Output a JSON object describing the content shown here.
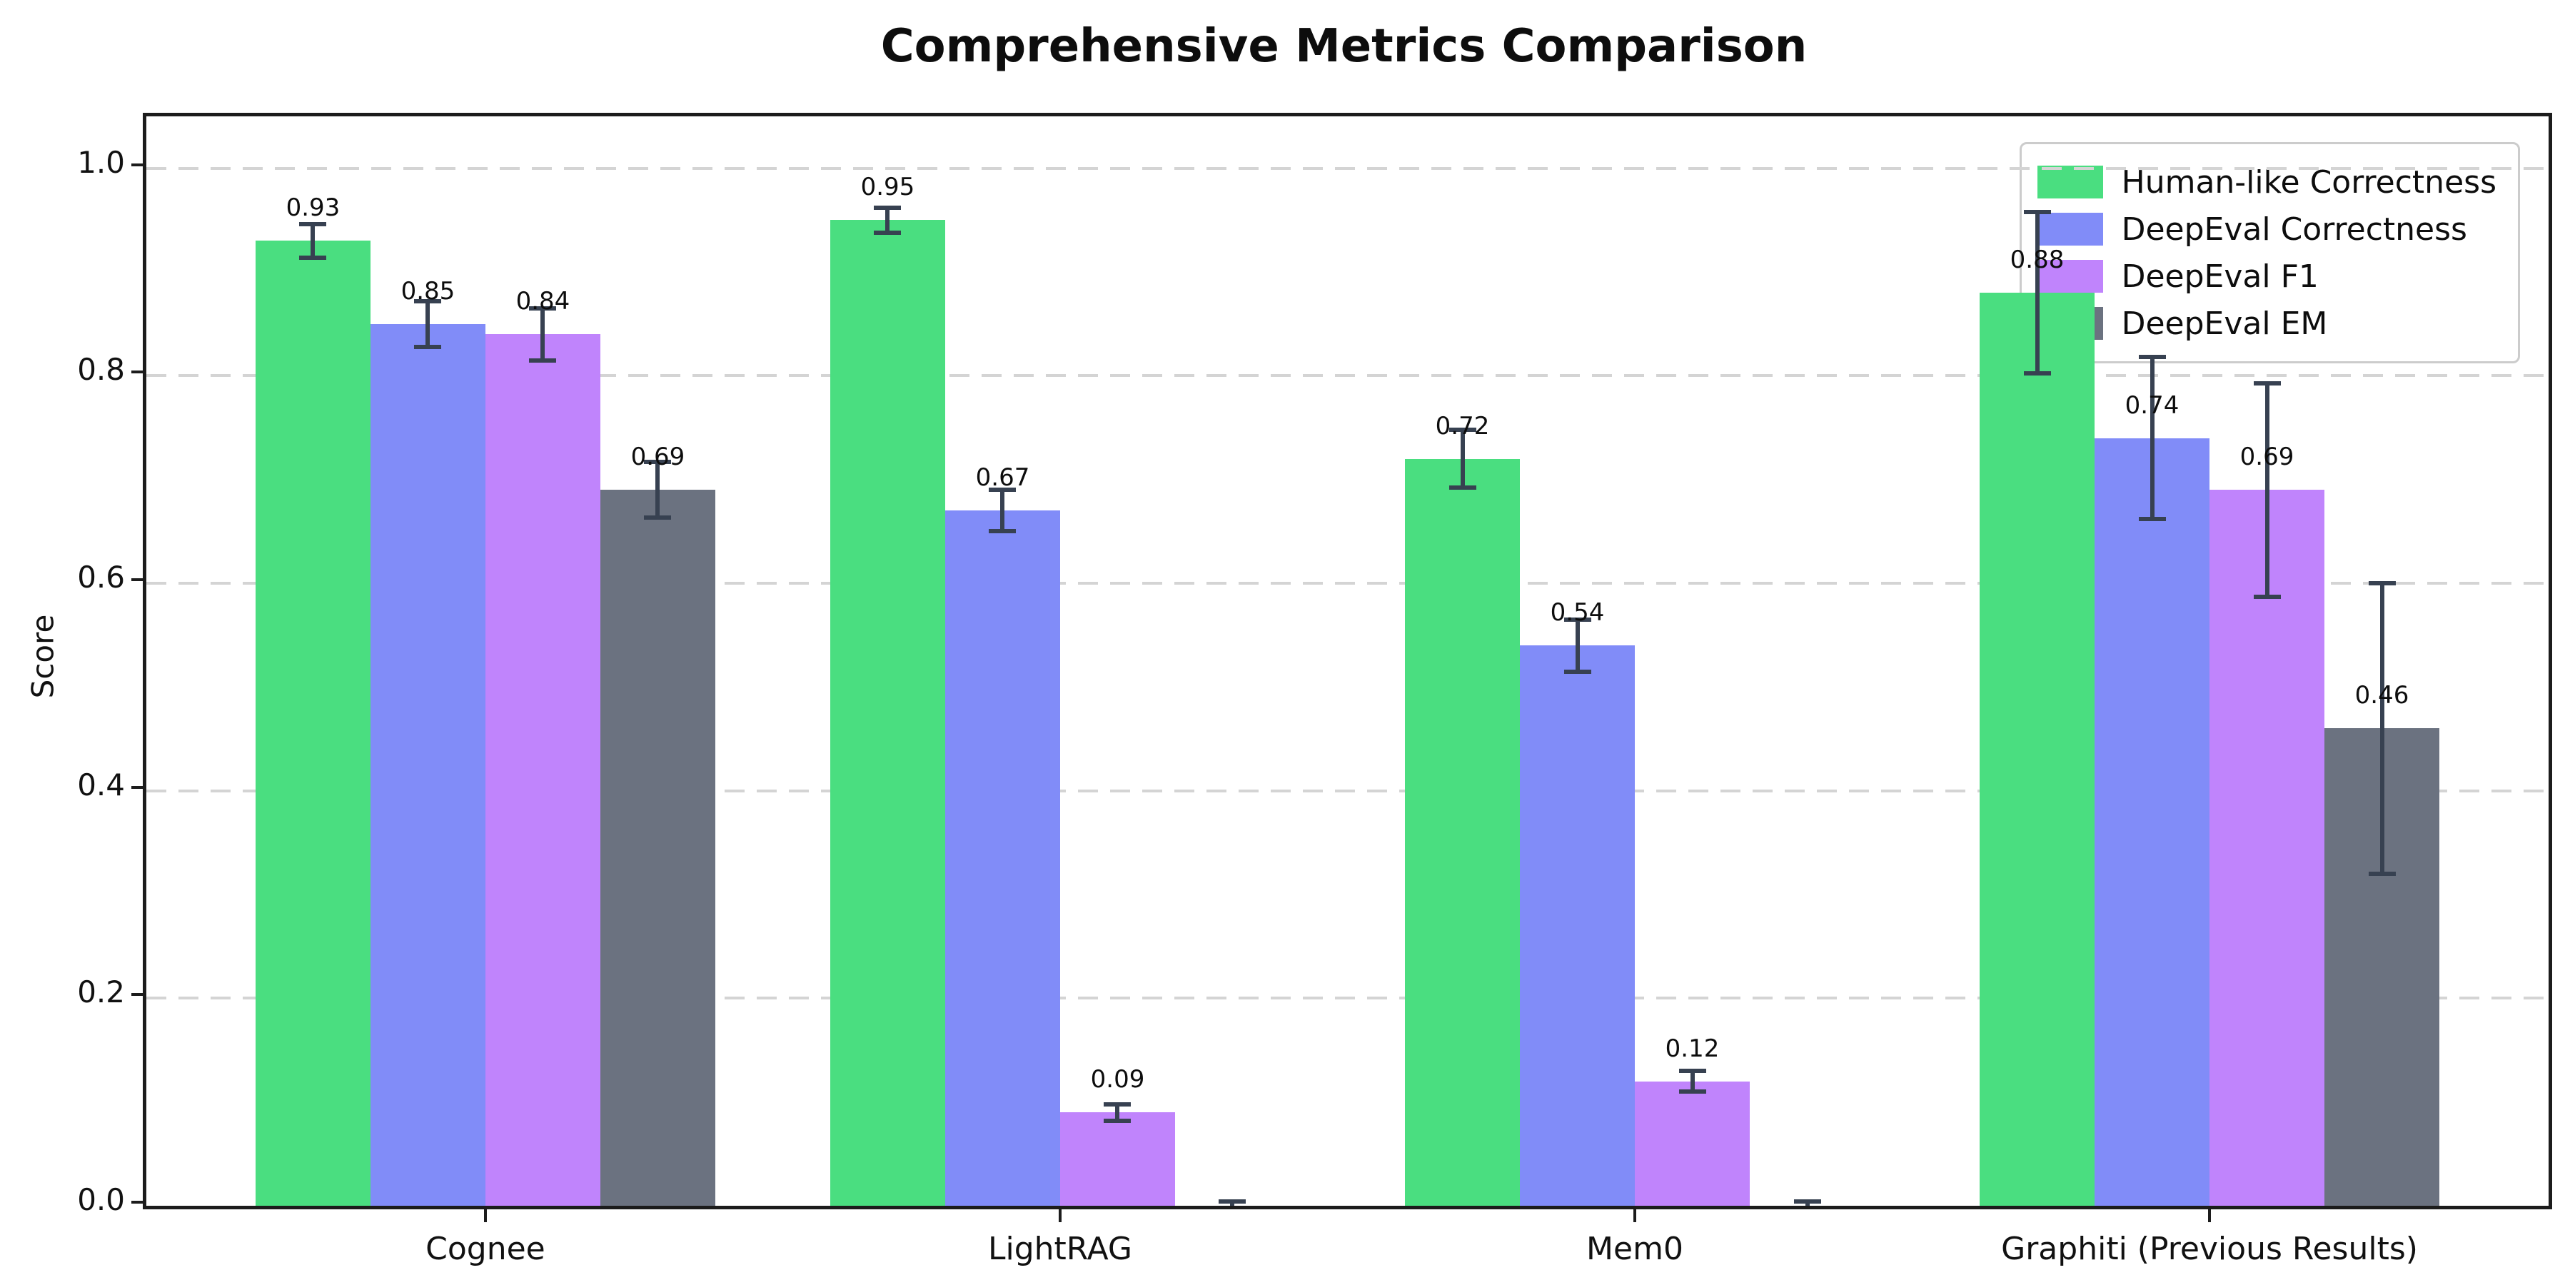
{
  "chart_data": {
    "type": "bar",
    "title": "Comprehensive Metrics Comparison",
    "ylabel": "Score",
    "xlabel": "",
    "categories": [
      "Cognee",
      "LightRAG",
      "Mem0",
      "Graphiti (Previous Results)"
    ],
    "series": [
      {
        "name": "Human-like Correctness",
        "color": "#4ade80",
        "values": [
          0.93,
          0.95,
          0.72,
          0.88
        ],
        "errors": [
          0.016,
          0.012,
          0.028,
          0.078
        ],
        "labels": [
          "0.93",
          "0.95",
          "0.72",
          "0.88"
        ]
      },
      {
        "name": "DeepEval Correctness",
        "color": "#818cf8",
        "values": [
          0.85,
          0.67,
          0.54,
          0.74
        ],
        "errors": [
          0.022,
          0.02,
          0.025,
          0.078
        ],
        "labels": [
          "0.85",
          "0.67",
          "0.54",
          "0.74"
        ]
      },
      {
        "name": "DeepEval F1",
        "color": "#c084fc",
        "values": [
          0.84,
          0.09,
          0.12,
          0.69
        ],
        "errors": [
          0.025,
          0.008,
          0.01,
          0.103
        ],
        "labels": [
          "0.84",
          "0.09",
          "0.12",
          "0.69"
        ]
      },
      {
        "name": "DeepEval EM",
        "color": "#6b7280",
        "values": [
          0.69,
          0.0,
          0.0,
          0.46
        ],
        "errors": [
          0.027,
          0.004,
          0.004,
          0.14
        ],
        "labels": [
          "0.69",
          "",
          "",
          "0.46"
        ]
      }
    ],
    "yticks": [
      "0.0",
      "0.2",
      "0.4",
      "0.6",
      "0.8",
      "1.0"
    ],
    "ylim": [
      0,
      1.05
    ],
    "grid": "horizontal dashed",
    "legend_position": "upper right",
    "error_bar_color": "#374151"
  }
}
